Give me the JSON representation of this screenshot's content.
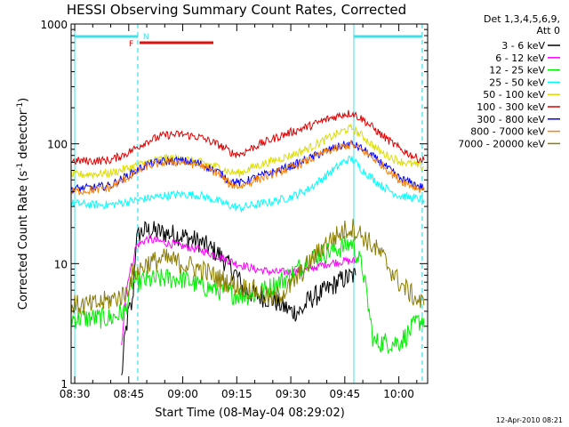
{
  "chart_data": {
    "type": "line",
    "title": "HESSI Observing Summary Count Rates, Corrected",
    "xlabel": "Start Time (08-May-04 08:29:02)",
    "ylabel_main": "Corrected Count Rate (s",
    "ylabel_sup1": "-1",
    "ylabel_mid": " detector",
    "ylabel_sup2": "-1",
    "ylabel_end": ")",
    "y_scale": "log",
    "ylim": [
      1,
      1000
    ],
    "xlim_minutes_after_0830": [
      -1,
      98
    ],
    "x_ticks": [
      {
        "m": 0,
        "label": "08:30"
      },
      {
        "m": 15,
        "label": "08:45"
      },
      {
        "m": 30,
        "label": "09:00"
      },
      {
        "m": 45,
        "label": "09:15"
      },
      {
        "m": 60,
        "label": "09:30"
      },
      {
        "m": 75,
        "label": "09:45"
      },
      {
        "m": 90,
        "label": "10:00"
      }
    ],
    "y_ticks": [
      {
        "v": 1,
        "label": "1"
      },
      {
        "v": 10,
        "label": "10"
      },
      {
        "v": 100,
        "label": "100"
      },
      {
        "v": 1000,
        "label": "1000"
      }
    ],
    "detector_header": [
      "Det 1,3,4,5,6,9,",
      "Att 0"
    ],
    "footer_date": "12-Apr-2010 08:21",
    "legend_position": "right",
    "night_intervals": [
      [
        0,
        17.5
      ],
      [
        77.5,
        96.5
      ]
    ],
    "night_marker_label": "N",
    "flare_marker_label": "F",
    "flare_interval": [
      18,
      38.5
    ],
    "colors": {
      "night": "#40e0e8",
      "flare": "#e01010"
    },
    "series": [
      {
        "name": "3 - 6 keV",
        "color": "#000000",
        "points": [
          [
            13,
            1.1
          ],
          [
            14,
            2.5
          ],
          [
            15,
            4
          ],
          [
            16,
            4.5
          ],
          [
            17,
            15
          ],
          [
            18,
            18
          ],
          [
            20,
            19
          ],
          [
            25,
            18
          ],
          [
            30,
            17
          ],
          [
            35,
            15
          ],
          [
            40,
            12
          ],
          [
            45,
            8
          ],
          [
            47,
            6
          ],
          [
            50,
            5.5
          ],
          [
            55,
            5
          ],
          [
            60,
            4
          ],
          [
            63,
            4
          ],
          [
            65,
            5
          ],
          [
            70,
            6
          ],
          [
            73,
            7
          ],
          [
            75,
            7.5
          ],
          [
            78,
            8
          ]
        ]
      },
      {
        "name": "6 - 12 keV",
        "color": "#ff00ff",
        "points": [
          [
            13,
            2
          ],
          [
            14,
            5
          ],
          [
            15,
            8
          ],
          [
            16,
            10
          ],
          [
            17,
            14
          ],
          [
            20,
            16
          ],
          [
            25,
            15
          ],
          [
            30,
            14
          ],
          [
            35,
            13
          ],
          [
            40,
            11.5
          ],
          [
            45,
            10
          ],
          [
            50,
            9
          ],
          [
            55,
            8.5
          ],
          [
            60,
            8.5
          ],
          [
            65,
            9
          ],
          [
            70,
            10
          ],
          [
            75,
            10.5
          ],
          [
            78,
            10.5
          ]
        ]
      },
      {
        "name": "12 - 25 keV",
        "color": "#00ee00",
        "points": [
          [
            -1,
            3.5
          ],
          [
            5,
            3.5
          ],
          [
            10,
            3.5
          ],
          [
            14,
            4
          ],
          [
            16,
            7
          ],
          [
            20,
            7.2
          ],
          [
            25,
            7.5
          ],
          [
            30,
            7.5
          ],
          [
            35,
            6.5
          ],
          [
            40,
            6
          ],
          [
            45,
            5.5
          ],
          [
            50,
            5.5
          ],
          [
            55,
            6.5
          ],
          [
            60,
            8
          ],
          [
            65,
            11
          ],
          [
            70,
            12.5
          ],
          [
            75,
            14
          ],
          [
            77,
            15
          ],
          [
            80,
            9
          ],
          [
            82,
            3.5
          ],
          [
            83,
            2.2
          ],
          [
            90,
            2.2
          ],
          [
            92,
            2.5
          ],
          [
            95,
            3.2
          ],
          [
            97,
            3.5
          ]
        ]
      },
      {
        "name": "25 - 50 keV",
        "color": "#00ffff",
        "points": [
          [
            -1,
            32
          ],
          [
            5,
            31
          ],
          [
            10,
            31
          ],
          [
            15,
            33
          ],
          [
            20,
            35
          ],
          [
            25,
            37
          ],
          [
            30,
            38
          ],
          [
            35,
            37
          ],
          [
            40,
            33
          ],
          [
            44,
            30
          ],
          [
            46,
            29
          ],
          [
            50,
            31
          ],
          [
            55,
            33
          ],
          [
            60,
            36
          ],
          [
            65,
            42
          ],
          [
            70,
            55
          ],
          [
            75,
            72
          ],
          [
            77,
            75
          ],
          [
            80,
            60
          ],
          [
            85,
            45
          ],
          [
            90,
            37
          ],
          [
            95,
            35
          ],
          [
            97,
            34
          ]
        ]
      },
      {
        "name": "50 - 100 keV",
        "color": "#dddd00",
        "points": [
          [
            -1,
            55
          ],
          [
            5,
            56
          ],
          [
            10,
            57
          ],
          [
            15,
            63
          ],
          [
            20,
            70
          ],
          [
            25,
            76
          ],
          [
            30,
            75
          ],
          [
            35,
            70
          ],
          [
            40,
            64
          ],
          [
            43,
            58
          ],
          [
            46,
            57
          ],
          [
            50,
            65
          ],
          [
            55,
            72
          ],
          [
            60,
            80
          ],
          [
            65,
            92
          ],
          [
            70,
            110
          ],
          [
            75,
            130
          ],
          [
            77,
            135
          ],
          [
            80,
            115
          ],
          [
            85,
            85
          ],
          [
            90,
            72
          ],
          [
            95,
            66
          ],
          [
            97,
            64
          ]
        ]
      },
      {
        "name": "100 - 300 keV",
        "color": "#e00000",
        "points": [
          [
            -1,
            72
          ],
          [
            5,
            72
          ],
          [
            10,
            73
          ],
          [
            15,
            85
          ],
          [
            20,
            105
          ],
          [
            25,
            118
          ],
          [
            30,
            120
          ],
          [
            35,
            113
          ],
          [
            40,
            98
          ],
          [
            44,
            83
          ],
          [
            46,
            82
          ],
          [
            50,
            95
          ],
          [
            55,
            110
          ],
          [
            60,
            125
          ],
          [
            65,
            140
          ],
          [
            70,
            160
          ],
          [
            75,
            178
          ],
          [
            77,
            180
          ],
          [
            80,
            160
          ],
          [
            85,
            120
          ],
          [
            90,
            92
          ],
          [
            95,
            76
          ],
          [
            97,
            73
          ]
        ]
      },
      {
        "name": "300 - 800 keV",
        "color": "#0000ff",
        "points": [
          [
            -1,
            42
          ],
          [
            5,
            43
          ],
          [
            10,
            45
          ],
          [
            15,
            55
          ],
          [
            20,
            67
          ],
          [
            25,
            72
          ],
          [
            30,
            72
          ],
          [
            35,
            68
          ],
          [
            40,
            58
          ],
          [
            43,
            49
          ],
          [
            46,
            47
          ],
          [
            50,
            52
          ],
          [
            55,
            58
          ],
          [
            60,
            65
          ],
          [
            65,
            75
          ],
          [
            70,
            88
          ],
          [
            75,
            98
          ],
          [
            77,
            100
          ],
          [
            80,
            90
          ],
          [
            85,
            70
          ],
          [
            90,
            52
          ],
          [
            95,
            45
          ],
          [
            97,
            43
          ]
        ]
      },
      {
        "name": "800 - 7000 keV",
        "color": "#ff8000",
        "points": [
          [
            -1,
            40
          ],
          [
            5,
            41
          ],
          [
            10,
            43
          ],
          [
            15,
            53
          ],
          [
            20,
            65
          ],
          [
            25,
            70
          ],
          [
            30,
            70
          ],
          [
            35,
            66
          ],
          [
            40,
            56
          ],
          [
            43,
            46
          ],
          [
            46,
            44
          ],
          [
            50,
            50
          ],
          [
            55,
            56
          ],
          [
            60,
            63
          ],
          [
            65,
            73
          ],
          [
            70,
            86
          ],
          [
            75,
            96
          ],
          [
            77,
            98
          ],
          [
            80,
            88
          ],
          [
            85,
            68
          ],
          [
            90,
            50
          ],
          [
            95,
            43
          ],
          [
            97,
            41
          ]
        ]
      },
      {
        "name": "7000 - 20000 keV",
        "color": "#8b7d00",
        "points": [
          [
            -1,
            4.5
          ],
          [
            5,
            4.5
          ],
          [
            10,
            5
          ],
          [
            14,
            5.5
          ],
          [
            16,
            8
          ],
          [
            20,
            10
          ],
          [
            25,
            11
          ],
          [
            30,
            10
          ],
          [
            35,
            9
          ],
          [
            40,
            7.5
          ],
          [
            45,
            6.5
          ],
          [
            50,
            6
          ],
          [
            55,
            5
          ],
          [
            60,
            6.5
          ],
          [
            65,
            10
          ],
          [
            70,
            15
          ],
          [
            75,
            19
          ],
          [
            77,
            20
          ],
          [
            80,
            17
          ],
          [
            85,
            12
          ],
          [
            90,
            7
          ],
          [
            95,
            5
          ],
          [
            97,
            4.5
          ]
        ]
      }
    ]
  }
}
